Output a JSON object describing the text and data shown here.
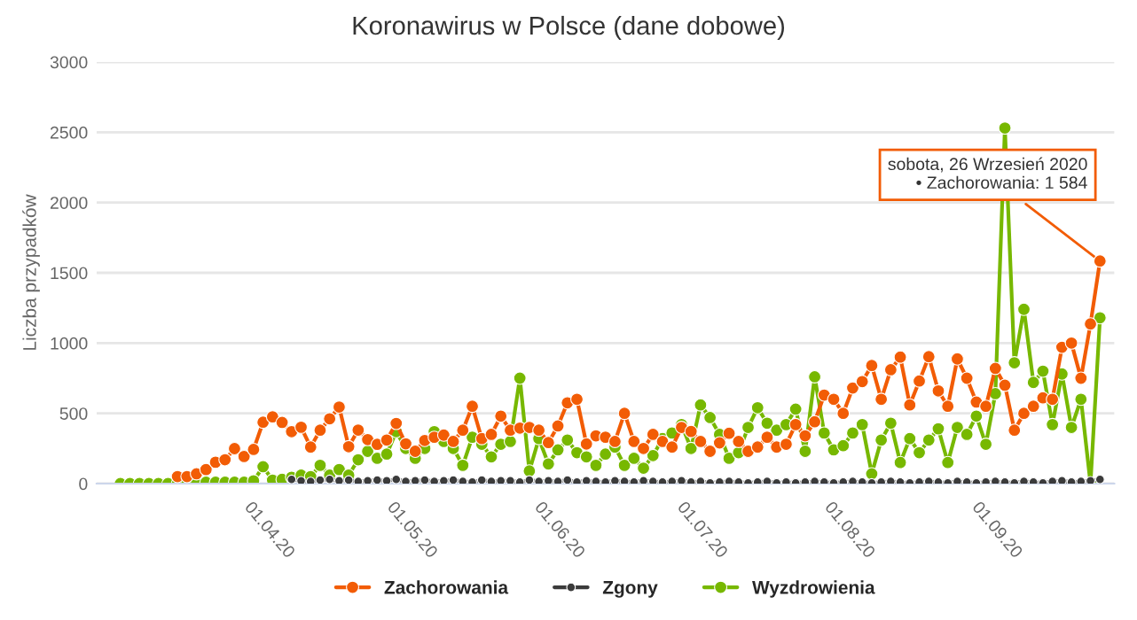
{
  "chart_data": {
    "type": "line",
    "title": "Koronawirus w Polsce (dane dobowe)",
    "ylabel": "Liczba przypadków",
    "x": [
      "2020-03-04",
      "2020-03-06",
      "2020-03-08",
      "2020-03-10",
      "2020-03-12",
      "2020-03-14",
      "2020-03-16",
      "2020-03-18",
      "2020-03-20",
      "2020-03-22",
      "2020-03-24",
      "2020-03-26",
      "2020-03-28",
      "2020-03-30",
      "2020-04-01",
      "2020-04-03",
      "2020-04-05",
      "2020-04-07",
      "2020-04-09",
      "2020-04-11",
      "2020-04-13",
      "2020-04-15",
      "2020-04-17",
      "2020-04-19",
      "2020-04-21",
      "2020-04-23",
      "2020-04-25",
      "2020-04-27",
      "2020-04-29",
      "2020-05-01",
      "2020-05-03",
      "2020-05-05",
      "2020-05-07",
      "2020-05-09",
      "2020-05-11",
      "2020-05-13",
      "2020-05-15",
      "2020-05-17",
      "2020-05-19",
      "2020-05-21",
      "2020-05-23",
      "2020-05-25",
      "2020-05-27",
      "2020-05-29",
      "2020-05-31",
      "2020-06-02",
      "2020-06-04",
      "2020-06-06",
      "2020-06-08",
      "2020-06-10",
      "2020-06-12",
      "2020-06-14",
      "2020-06-16",
      "2020-06-18",
      "2020-06-20",
      "2020-06-22",
      "2020-06-24",
      "2020-06-26",
      "2020-06-28",
      "2020-06-30",
      "2020-07-02",
      "2020-07-04",
      "2020-07-06",
      "2020-07-08",
      "2020-07-10",
      "2020-07-12",
      "2020-07-14",
      "2020-07-16",
      "2020-07-18",
      "2020-07-20",
      "2020-07-22",
      "2020-07-24",
      "2020-07-26",
      "2020-07-28",
      "2020-07-30",
      "2020-08-01",
      "2020-08-03",
      "2020-08-05",
      "2020-08-07",
      "2020-08-09",
      "2020-08-11",
      "2020-08-13",
      "2020-08-15",
      "2020-08-17",
      "2020-08-19",
      "2020-08-21",
      "2020-08-23",
      "2020-08-25",
      "2020-08-27",
      "2020-08-29",
      "2020-08-31",
      "2020-09-02",
      "2020-09-04",
      "2020-09-06",
      "2020-09-08",
      "2020-09-10",
      "2020-09-12",
      "2020-09-14",
      "2020-09-16",
      "2020-09-18",
      "2020-09-20",
      "2020-09-22",
      "2020-09-24",
      "2020-09-26"
    ],
    "series": [
      {
        "name": "Zachorowania",
        "color": "#f25c05",
        "values": [
          null,
          null,
          null,
          null,
          null,
          null,
          50,
          50,
          70,
          100,
          152,
          170,
          249,
          193,
          243,
          437,
          475,
          435,
          370,
          401,
          260,
          380,
          461,
          545,
          263,
          381,
          313,
          279,
          310,
          428,
          283,
          230,
          307,
          330,
          345,
          300,
          380,
          550,
          320,
          350,
          480,
          380,
          395,
          400,
          380,
          292,
          410,
          575,
          600,
          282,
          340,
          330,
          300,
          500,
          300,
          250,
          350,
          300,
          260,
          400,
          371,
          300,
          230,
          290,
          358,
          300,
          230,
          260,
          330,
          260,
          280,
          420,
          340,
          440,
          630,
          600,
          500,
          680,
          726,
          840,
          600,
          810,
          900,
          560,
          730,
          903,
          660,
          550,
          887,
          750,
          580,
          550,
          820,
          700,
          380,
          500,
          550,
          610,
          600,
          970,
          1000,
          750,
          1136,
          1584
        ]
      },
      {
        "name": "Zgony",
        "color": "#3b3b3b",
        "values": [
          null,
          null,
          null,
          null,
          null,
          null,
          null,
          null,
          null,
          null,
          null,
          null,
          null,
          null,
          null,
          null,
          null,
          null,
          30,
          20,
          15,
          25,
          30,
          20,
          25,
          15,
          20,
          25,
          20,
          30,
          15,
          20,
          25,
          15,
          20,
          25,
          15,
          10,
          25,
          15,
          20,
          20,
          10,
          25,
          15,
          20,
          15,
          25,
          10,
          20,
          15,
          10,
          20,
          15,
          10,
          20,
          15,
          10,
          15,
          20,
          10,
          15,
          5,
          10,
          15,
          10,
          5,
          10,
          15,
          5,
          10,
          5,
          10,
          15,
          10,
          5,
          10,
          15,
          10,
          5,
          10,
          15,
          10,
          5,
          10,
          15,
          10,
          5,
          15,
          10,
          5,
          10,
          15,
          10,
          5,
          15,
          10,
          5,
          15,
          20,
          10,
          15,
          20,
          30
        ]
      },
      {
        "name": "Wyzdrowienia",
        "color": "#77b800",
        "values": [
          0,
          0,
          0,
          0,
          0,
          0,
          0,
          0,
          0,
          10,
          10,
          10,
          10,
          10,
          20,
          120,
          25,
          30,
          45,
          60,
          50,
          130,
          60,
          100,
          60,
          170,
          230,
          180,
          210,
          370,
          250,
          180,
          250,
          370,
          300,
          250,
          130,
          330,
          280,
          190,
          280,
          300,
          750,
          90,
          320,
          140,
          240,
          310,
          220,
          190,
          130,
          210,
          260,
          130,
          180,
          110,
          200,
          320,
          360,
          420,
          250,
          560,
          470,
          350,
          180,
          220,
          400,
          540,
          430,
          380,
          420,
          530,
          230,
          760,
          360,
          240,
          270,
          360,
          420,
          70,
          310,
          430,
          150,
          320,
          220,
          310,
          390,
          150,
          400,
          350,
          480,
          280,
          640,
          2530,
          860,
          1240,
          720,
          800,
          420,
          780,
          400,
          600,
          0,
          1180
        ]
      }
    ],
    "ylim": [
      0,
      3000
    ],
    "yticks": [
      0,
      500,
      1000,
      1500,
      2000,
      2500,
      3000
    ],
    "xlim": [
      "2020-02-28",
      "2020-09-29"
    ],
    "xticks": [
      {
        "value": "2020-04-01",
        "label": "01.04.20"
      },
      {
        "value": "2020-05-01",
        "label": "01.05.20"
      },
      {
        "value": "2020-06-01",
        "label": "01.06.20"
      },
      {
        "value": "2020-07-01",
        "label": "01.07.20"
      },
      {
        "value": "2020-08-01",
        "label": "01.08.20"
      },
      {
        "value": "2020-09-01",
        "label": "01.09.20"
      }
    ],
    "grid": "y",
    "legend": "bottom",
    "marker": "circle",
    "line_style": "solid",
    "annotations": [
      {
        "text": "sobota, 26 Wrzesień 2020\n• Zachorowania: 1 584",
        "x": "2020-09-26",
        "y": 1584
      }
    ]
  }
}
